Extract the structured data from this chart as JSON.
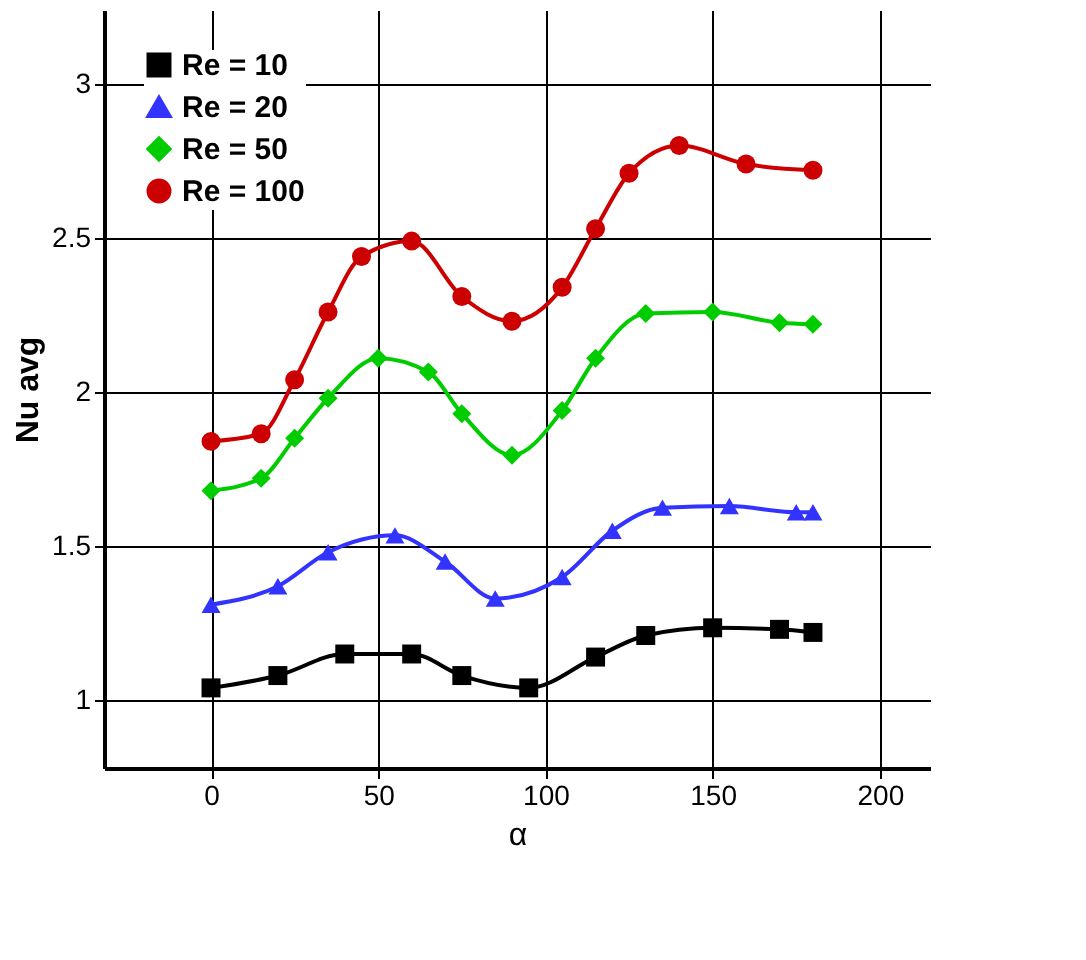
{
  "chart_data": {
    "type": "line",
    "xlabel": "α",
    "ylabel": "Nu avg",
    "xlim": [
      -32,
      215
    ],
    "ylim": [
      0.78,
      3.24
    ],
    "xticks": [
      0,
      50,
      100,
      150,
      200
    ],
    "yticks": [
      1,
      1.5,
      2,
      2.5,
      3
    ],
    "grid": true,
    "legend": "top left",
    "line_style": "solid",
    "series": [
      {
        "name": "Re = 10",
        "color": "#000000",
        "marker": "square",
        "x": [
          0,
          20,
          40,
          60,
          75,
          95,
          115,
          130,
          150,
          170,
          180
        ],
        "values": [
          1.04,
          1.08,
          1.15,
          1.15,
          1.08,
          1.04,
          1.14,
          1.21,
          1.235,
          1.23,
          1.22
        ]
      },
      {
        "name": "Re = 20",
        "color": "#3333ff",
        "marker": "triangle",
        "x": [
          0,
          20,
          35,
          55,
          70,
          85,
          105,
          120,
          135,
          155,
          175,
          180
        ],
        "values": [
          1.31,
          1.37,
          1.48,
          1.535,
          1.45,
          1.33,
          1.4,
          1.55,
          1.625,
          1.63,
          1.61,
          1.61
        ]
      },
      {
        "name": "Re = 50",
        "color": "#00cc00",
        "marker": "diamond",
        "x": [
          0,
          15,
          25,
          35,
          50,
          65,
          75,
          90,
          105,
          115,
          130,
          150,
          170,
          180
        ],
        "values": [
          1.68,
          1.72,
          1.85,
          1.98,
          2.11,
          2.065,
          1.93,
          1.795,
          1.94,
          2.11,
          2.255,
          2.26,
          2.225,
          2.22
        ]
      },
      {
        "name": "Re = 100",
        "color": "#cc0000",
        "marker": "circle",
        "x": [
          0,
          15,
          25,
          35,
          45,
          60,
          75,
          90,
          105,
          115,
          125,
          140,
          160,
          180
        ],
        "values": [
          1.84,
          1.865,
          2.04,
          2.26,
          2.44,
          2.49,
          2.31,
          2.23,
          2.34,
          2.53,
          2.71,
          2.8,
          2.74,
          2.72
        ]
      }
    ]
  }
}
